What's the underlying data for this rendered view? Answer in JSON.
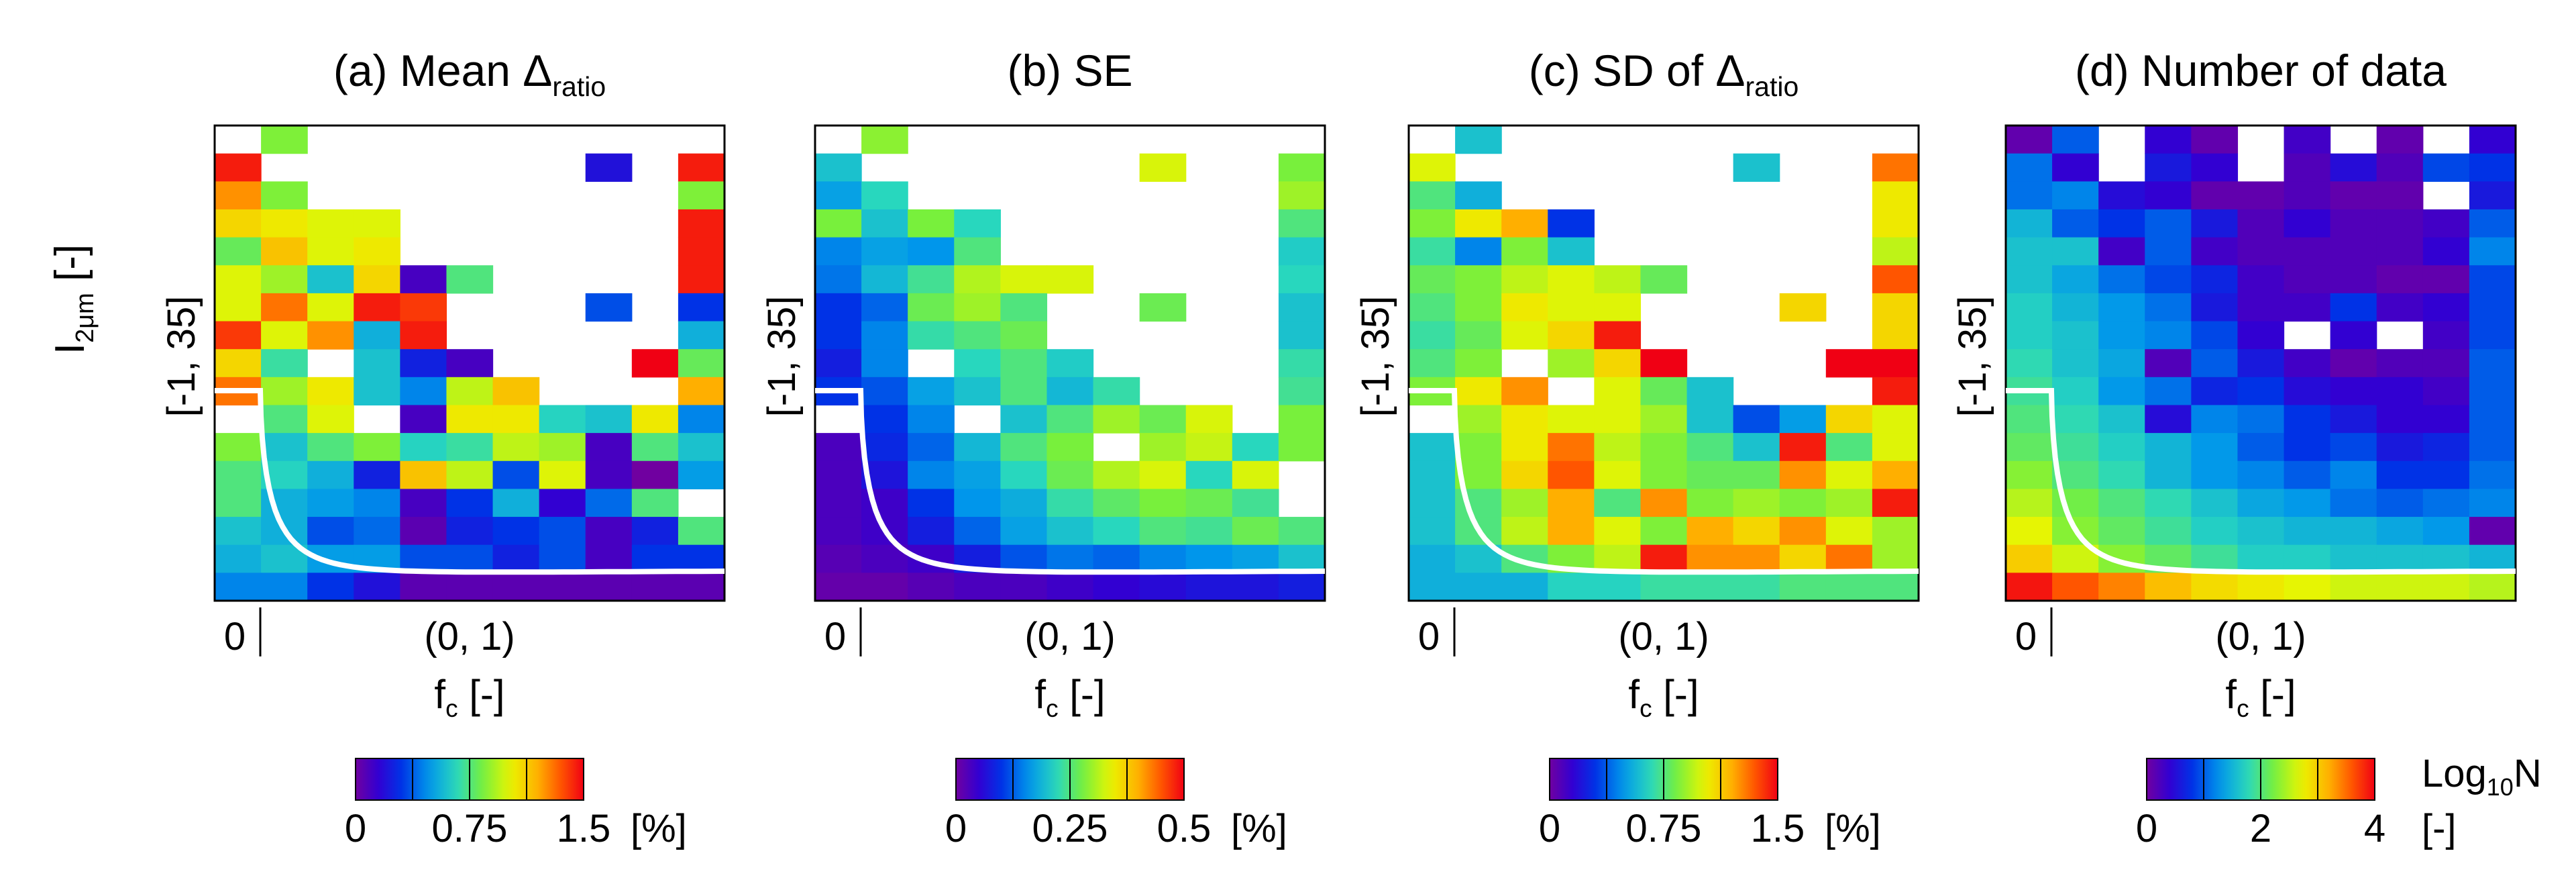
{
  "figure": {
    "ylabel": {
      "main": "I",
      "sub": "2μm",
      "unit": " [-]"
    },
    "xlabel": {
      "main": "f",
      "sub": "c",
      "unit": " [-]"
    },
    "x_tick_zero": "0",
    "x_tick_range": "(0, 1)",
    "y_tick_range": "[-1, 35]"
  },
  "chart_data": [
    {
      "type": "heatmap",
      "title": {
        "prefix": "(a) Mean Δ",
        "sub": "ratio"
      },
      "colorbar": {
        "min": 0,
        "max": 1.5,
        "ticks": [
          "0",
          "0.75",
          "1.5"
        ],
        "unit": "[%]"
      },
      "grid": [
        [
          null,
          0.85,
          null,
          null,
          null,
          null,
          null,
          null,
          null,
          null,
          null
        ],
        [
          1.45,
          null,
          null,
          null,
          null,
          null,
          null,
          null,
          0.2,
          null,
          1.45
        ],
        [
          1.25,
          0.85,
          null,
          null,
          null,
          null,
          null,
          null,
          null,
          null,
          0.85
        ],
        [
          1.1,
          1.05,
          1.0,
          1.0,
          null,
          null,
          null,
          null,
          null,
          null,
          1.45
        ],
        [
          0.8,
          1.15,
          1.0,
          1.05,
          null,
          null,
          null,
          null,
          null,
          null,
          1.45
        ],
        [
          1.0,
          0.9,
          0.6,
          1.1,
          0.1,
          0.75,
          null,
          null,
          null,
          null,
          1.45
        ],
        [
          1.0,
          1.3,
          1.0,
          1.45,
          1.4,
          null,
          null,
          null,
          0.35,
          null,
          0.3
        ],
        [
          1.4,
          1.0,
          1.25,
          0.55,
          1.45,
          null,
          null,
          null,
          null,
          null,
          0.55
        ],
        [
          1.1,
          0.7,
          null,
          0.6,
          0.25,
          0.1,
          null,
          null,
          null,
          1.5,
          0.8
        ],
        [
          1.3,
          0.9,
          1.05,
          0.6,
          0.45,
          0.95,
          1.15,
          null,
          null,
          null,
          1.2
        ],
        [
          null,
          0.75,
          1.0,
          null,
          0.1,
          1.05,
          1.05,
          0.65,
          0.6,
          1.05,
          0.45
        ],
        [
          0.85,
          0.6,
          0.75,
          0.85,
          0.65,
          0.7,
          0.95,
          0.9,
          0.1,
          0.75,
          0.6
        ],
        [
          0.75,
          0.65,
          0.55,
          0.25,
          1.15,
          0.95,
          0.35,
          1.0,
          0.1,
          0.0,
          0.5
        ],
        [
          0.75,
          0.55,
          0.5,
          0.45,
          0.1,
          0.3,
          0.55,
          0.15,
          0.4,
          0.75,
          null
        ],
        [
          0.6,
          0.55,
          0.35,
          0.4,
          0.05,
          0.25,
          0.3,
          0.35,
          0.1,
          0.25,
          0.75
        ],
        [
          0.55,
          0.6,
          0.5,
          0.5,
          0.35,
          0.35,
          0.25,
          0.35,
          0.1,
          0.3,
          0.3
        ],
        [
          0.45,
          0.45,
          0.3,
          0.2,
          0.05,
          0.05,
          0.05,
          0.05,
          0.05,
          0.05,
          0.05
        ]
      ]
    },
    {
      "type": "heatmap",
      "title": {
        "prefix": "(b) SE",
        "sub": ""
      },
      "colorbar": {
        "min": 0,
        "max": 0.5,
        "ticks": [
          "0",
          "0.25",
          "0.5"
        ],
        "unit": "[%]"
      },
      "grid": [
        [
          null,
          0.29,
          null,
          null,
          null,
          null,
          null,
          null,
          null,
          null,
          null
        ],
        [
          0.2,
          null,
          null,
          null,
          null,
          null,
          null,
          0.33,
          null,
          null,
          0.28
        ],
        [
          0.17,
          0.22,
          null,
          null,
          null,
          null,
          null,
          null,
          null,
          null,
          0.3
        ],
        [
          0.28,
          0.2,
          0.28,
          0.22,
          null,
          null,
          null,
          null,
          null,
          null,
          0.25
        ],
        [
          0.15,
          0.17,
          0.16,
          0.25,
          null,
          null,
          null,
          null,
          null,
          null,
          0.21
        ],
        [
          0.14,
          0.19,
          0.24,
          0.31,
          0.33,
          0.33,
          null,
          null,
          null,
          null,
          0.22
        ],
        [
          0.1,
          0.13,
          0.27,
          0.3,
          0.25,
          null,
          null,
          0.27,
          null,
          null,
          0.2
        ],
        [
          0.1,
          0.15,
          0.23,
          0.25,
          0.27,
          null,
          null,
          null,
          null,
          null,
          0.2
        ],
        [
          0.08,
          0.15,
          null,
          0.22,
          0.25,
          0.21,
          null,
          null,
          null,
          null,
          0.23
        ],
        [
          0.1,
          0.12,
          0.17,
          0.2,
          0.25,
          0.19,
          0.23,
          null,
          null,
          null,
          0.24
        ],
        [
          null,
          0.1,
          0.15,
          null,
          0.2,
          0.25,
          0.3,
          0.27,
          0.33,
          null,
          0.28
        ],
        [
          0.03,
          0.09,
          0.13,
          0.19,
          0.25,
          0.28,
          null,
          0.3,
          0.32,
          0.22,
          0.28
        ],
        [
          0.03,
          0.07,
          0.15,
          0.17,
          0.22,
          0.27,
          0.31,
          0.33,
          0.22,
          0.33,
          null
        ],
        [
          0.03,
          0.04,
          0.1,
          0.16,
          0.18,
          0.23,
          0.26,
          0.28,
          0.27,
          0.24,
          null
        ],
        [
          0.03,
          0.04,
          0.08,
          0.13,
          0.17,
          0.2,
          0.22,
          0.25,
          0.24,
          0.27,
          0.25
        ],
        [
          0.02,
          0.03,
          0.04,
          0.08,
          0.12,
          0.14,
          0.13,
          0.15,
          0.16,
          0.17,
          0.2
        ],
        [
          0.01,
          0.01,
          0.02,
          0.03,
          0.03,
          0.04,
          0.05,
          0.06,
          0.07,
          0.07,
          0.08
        ]
      ]
    },
    {
      "type": "heatmap",
      "title": {
        "prefix": "(c) SD of Δ",
        "sub": "ratio"
      },
      "colorbar": {
        "min": 0,
        "max": 1.5,
        "ticks": [
          "0",
          "0.75",
          "1.5"
        ],
        "unit": "[%]"
      },
      "grid": [
        [
          null,
          0.6,
          null,
          null,
          null,
          null,
          null,
          null,
          null,
          null,
          null
        ],
        [
          1.0,
          null,
          null,
          null,
          null,
          null,
          null,
          0.6,
          null,
          null,
          1.3
        ],
        [
          0.75,
          0.55,
          null,
          null,
          null,
          null,
          null,
          null,
          null,
          null,
          1.05
        ],
        [
          0.85,
          1.05,
          1.2,
          0.3,
          null,
          null,
          null,
          null,
          null,
          null,
          1.05
        ],
        [
          0.7,
          0.45,
          0.85,
          0.6,
          null,
          null,
          null,
          null,
          null,
          null,
          0.95
        ],
        [
          0.8,
          0.85,
          0.95,
          1.0,
          0.95,
          0.8,
          null,
          null,
          null,
          null,
          1.35
        ],
        [
          0.75,
          0.85,
          1.05,
          1.0,
          1.0,
          null,
          null,
          null,
          1.1,
          null,
          1.1
        ],
        [
          0.7,
          0.8,
          1.0,
          1.1,
          1.45,
          null,
          null,
          null,
          null,
          null,
          1.1
        ],
        [
          0.75,
          0.85,
          null,
          0.9,
          1.1,
          1.5,
          null,
          null,
          null,
          1.5,
          1.5
        ],
        [
          0.85,
          1.05,
          1.25,
          null,
          1.0,
          0.8,
          0.6,
          null,
          null,
          null,
          1.45
        ],
        [
          null,
          0.9,
          1.05,
          1.0,
          1.0,
          0.9,
          0.6,
          0.35,
          0.5,
          1.1,
          1.0
        ],
        [
          0.6,
          0.85,
          1.05,
          1.3,
          0.95,
          0.85,
          0.75,
          0.6,
          1.45,
          0.75,
          1.0
        ],
        [
          0.6,
          0.85,
          1.1,
          1.35,
          1.0,
          0.85,
          0.8,
          0.8,
          1.25,
          1.0,
          1.2
        ],
        [
          0.6,
          0.75,
          0.9,
          1.2,
          0.75,
          1.25,
          0.85,
          0.9,
          0.85,
          0.9,
          1.45
        ],
        [
          0.6,
          0.75,
          0.95,
          1.2,
          1.0,
          0.85,
          1.2,
          1.1,
          1.25,
          1.0,
          0.9
        ],
        [
          0.55,
          0.6,
          0.75,
          0.85,
          0.95,
          1.45,
          1.25,
          1.25,
          1.1,
          1.3,
          0.9
        ],
        [
          0.55,
          0.55,
          0.55,
          0.65,
          0.65,
          0.7,
          0.7,
          0.7,
          0.75,
          0.75,
          0.75
        ]
      ]
    },
    {
      "type": "heatmap",
      "title": {
        "prefix": "(d) Number of data",
        "sub": ""
      },
      "colorbar": {
        "min": 0,
        "max": 4,
        "ticks": [
          "0",
          "2",
          "4"
        ],
        "unit": "[-]",
        "label_main": "Log",
        "label_sub": "10",
        "label_tail": "N"
      },
      "grid": [
        [
          0.1,
          1.0,
          null,
          0.4,
          0.1,
          null,
          0.3,
          null,
          0.1,
          null,
          0.4
        ],
        [
          1.1,
          0.4,
          null,
          0.6,
          0.4,
          null,
          0.2,
          0.5,
          0.2,
          0.9,
          0.8
        ],
        [
          1.1,
          1.2,
          0.5,
          0.4,
          0.1,
          0.1,
          0.2,
          0.1,
          0.1,
          null,
          0.6
        ],
        [
          1.5,
          1.0,
          0.8,
          1.0,
          0.6,
          0.2,
          0.4,
          0.2,
          0.2,
          0.3,
          1.0
        ],
        [
          1.6,
          1.6,
          0.3,
          1.0,
          0.3,
          0.2,
          0.2,
          0.2,
          0.2,
          0.4,
          1.2
        ],
        [
          1.6,
          1.4,
          1.1,
          0.9,
          0.7,
          0.3,
          0.2,
          0.2,
          0.1,
          0.1,
          0.9
        ],
        [
          1.7,
          1.5,
          1.3,
          1.1,
          0.6,
          0.3,
          0.3,
          0.8,
          0.3,
          0.4,
          0.9
        ],
        [
          1.7,
          1.6,
          1.3,
          1.2,
          0.9,
          0.4,
          null,
          0.4,
          null,
          0.3,
          0.9
        ],
        [
          1.8,
          1.6,
          1.4,
          0.2,
          1.0,
          0.6,
          0.3,
          0.1,
          0.2,
          0.2,
          1.0
        ],
        [
          1.9,
          1.7,
          1.3,
          1.1,
          0.7,
          0.8,
          0.5,
          0.4,
          0.4,
          0.3,
          1.0
        ],
        [
          2.0,
          1.8,
          1.6,
          0.5,
          1.2,
          1.1,
          0.8,
          0.6,
          0.4,
          0.4,
          1.0
        ],
        [
          2.1,
          1.9,
          1.7,
          1.5,
          1.3,
          1.0,
          0.8,
          0.9,
          0.6,
          0.7,
          1.0
        ],
        [
          2.3,
          2.0,
          1.8,
          1.5,
          1.3,
          1.2,
          1.0,
          1.2,
          0.8,
          0.8,
          1.1
        ],
        [
          2.5,
          2.2,
          2.0,
          1.8,
          1.6,
          1.4,
          1.3,
          1.1,
          1.0,
          1.1,
          1.2
        ],
        [
          2.7,
          2.3,
          2.1,
          1.9,
          1.7,
          1.6,
          1.5,
          1.5,
          1.4,
          1.3,
          0.1
        ],
        [
          3.0,
          2.6,
          2.3,
          2.1,
          1.9,
          1.7,
          1.7,
          1.6,
          1.6,
          1.6,
          1.5
        ],
        [
          3.9,
          3.6,
          3.4,
          3.1,
          2.9,
          2.8,
          2.7,
          2.6,
          2.6,
          2.6,
          2.5
        ]
      ]
    }
  ]
}
